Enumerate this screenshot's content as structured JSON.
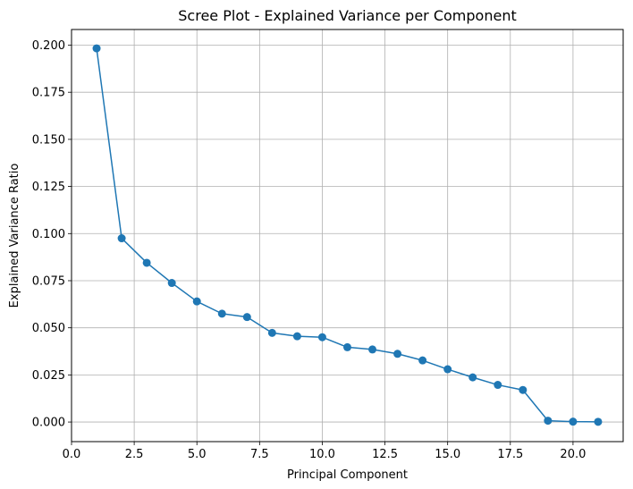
{
  "chart_data": {
    "type": "line",
    "title": "Scree Plot - Explained Variance per Component",
    "xlabel": "Principal Component",
    "ylabel": "Explained Variance Ratio",
    "xlim": [
      0,
      22
    ],
    "ylim": [
      -0.0104,
      0.2083
    ],
    "xticks": [
      0.0,
      2.5,
      5.0,
      7.5,
      10.0,
      12.5,
      15.0,
      17.5,
      20.0
    ],
    "xtick_labels": [
      "0.0",
      "2.5",
      "5.0",
      "7.5",
      "10.0",
      "12.5",
      "15.0",
      "17.5",
      "20.0"
    ],
    "yticks": [
      0.0,
      0.025,
      0.05,
      0.075,
      0.1,
      0.125,
      0.15,
      0.175,
      0.2
    ],
    "ytick_labels": [
      "0.000",
      "0.025",
      "0.050",
      "0.075",
      "0.100",
      "0.125",
      "0.150",
      "0.175",
      "0.200"
    ],
    "grid": true,
    "color": "#1f77b4",
    "marker": "circle",
    "x": [
      1,
      2,
      3,
      4,
      5,
      6,
      7,
      8,
      9,
      10,
      11,
      12,
      13,
      14,
      15,
      16,
      17,
      18,
      19,
      20,
      21
    ],
    "values": [
      0.1983,
      0.0975,
      0.0845,
      0.0738,
      0.064,
      0.0575,
      0.0557,
      0.0473,
      0.0455,
      0.045,
      0.0397,
      0.0385,
      0.0362,
      0.0327,
      0.028,
      0.0237,
      0.0197,
      0.017,
      0.0007,
      0.0002,
      0.0001
    ]
  }
}
